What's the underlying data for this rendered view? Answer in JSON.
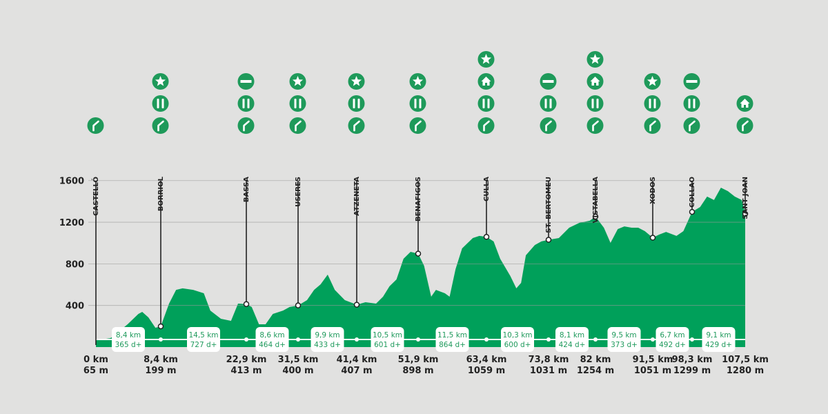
{
  "chart_data": {
    "type": "area",
    "title": "",
    "xlabel": "",
    "ylabel": "",
    "x_unit": "km",
    "y_unit": "m",
    "ylim": [
      0,
      1600
    ],
    "xlim": [
      0,
      107.5
    ],
    "y_ticks": [
      "400",
      "800",
      "1200",
      "1600"
    ],
    "grid": true,
    "colors": {
      "fill": "#00a05a",
      "icon": "#1e9a5a",
      "background": "#e1e1e0",
      "text": "#222222"
    },
    "profile": [
      [
        0,
        65
      ],
      [
        1.9,
        86
      ],
      [
        4.1,
        219
      ],
      [
        5.5,
        318
      ],
      [
        6.0,
        338
      ],
      [
        6.8,
        285
      ],
      [
        7.7,
        186
      ],
      [
        8.4,
        199
      ],
      [
        9.8,
        418
      ],
      [
        11.0,
        550
      ],
      [
        12.1,
        564
      ],
      [
        13.9,
        550
      ],
      [
        15.7,
        517
      ],
      [
        16.8,
        351
      ],
      [
        18.6,
        272
      ],
      [
        20.3,
        252
      ],
      [
        21.5,
        418
      ],
      [
        22.9,
        413
      ],
      [
        23.8,
        385
      ],
      [
        25.0,
        219
      ],
      [
        26.1,
        219
      ],
      [
        27.3,
        318
      ],
      [
        29.0,
        351
      ],
      [
        30.1,
        385
      ],
      [
        31.5,
        400
      ],
      [
        33.0,
        451
      ],
      [
        34.2,
        550
      ],
      [
        35.3,
        603
      ],
      [
        36.5,
        696
      ],
      [
        37.7,
        550
      ],
      [
        39.4,
        451
      ],
      [
        41.4,
        407
      ],
      [
        42.9,
        431
      ],
      [
        44.7,
        418
      ],
      [
        45.9,
        484
      ],
      [
        47.0,
        584
      ],
      [
        48.2,
        650
      ],
      [
        49.4,
        849
      ],
      [
        50.6,
        915
      ],
      [
        51.9,
        898
      ],
      [
        52.9,
        782
      ],
      [
        54.1,
        484
      ],
      [
        54.9,
        550
      ],
      [
        56.4,
        517
      ],
      [
        57.2,
        484
      ],
      [
        58.2,
        749
      ],
      [
        59.3,
        948
      ],
      [
        61.1,
        1048
      ],
      [
        62.2,
        1068
      ],
      [
        63.4,
        1059
      ],
      [
        64.6,
        1015
      ],
      [
        65.7,
        849
      ],
      [
        67.4,
        683
      ],
      [
        68.4,
        564
      ],
      [
        69.2,
        617
      ],
      [
        70.0,
        882
      ],
      [
        71.5,
        981
      ],
      [
        72.6,
        1015
      ],
      [
        73.8,
        1031
      ],
      [
        75.6,
        1048
      ],
      [
        77.4,
        1147
      ],
      [
        79.2,
        1194
      ],
      [
        81.0,
        1214
      ],
      [
        82,
        1254
      ],
      [
        83.4,
        1147
      ],
      [
        84.5,
        1001
      ],
      [
        85.7,
        1134
      ],
      [
        86.8,
        1160
      ],
      [
        88.0,
        1147
      ],
      [
        89.1,
        1147
      ],
      [
        90.2,
        1114
      ],
      [
        91.5,
        1051
      ],
      [
        92.6,
        1081
      ],
      [
        93.8,
        1107
      ],
      [
        95.6,
        1068
      ],
      [
        96.8,
        1114
      ],
      [
        98.3,
        1299
      ],
      [
        99.7,
        1346
      ],
      [
        100.9,
        1446
      ],
      [
        102.1,
        1413
      ],
      [
        103.3,
        1532
      ],
      [
        104.5,
        1499
      ],
      [
        105.7,
        1446
      ],
      [
        106.9,
        1413
      ],
      [
        107.5,
        1280
      ]
    ],
    "stations": [
      {
        "name": "CASTELLÓ",
        "km": 0,
        "km_label": "0 km",
        "elev": 65,
        "elev_label": "65 m",
        "icons": [
          "bike"
        ]
      },
      {
        "name": "BORRIOL",
        "km": 8.4,
        "km_label": "8,4 km",
        "elev": 199,
        "elev_label": "199 m",
        "icons": [
          "star",
          "food",
          "bike"
        ]
      },
      {
        "name": "BASSA",
        "km": 22.9,
        "km_label": "22,9 km",
        "elev": 413,
        "elev_label": "413 m",
        "icons": [
          "no-entry",
          "food",
          "bike"
        ]
      },
      {
        "name": "USERES",
        "km": 31.5,
        "km_label": "31,5 km",
        "elev": 400,
        "elev_label": "400 m",
        "icons": [
          "star",
          "food",
          "bike"
        ]
      },
      {
        "name": "ATZENETA",
        "km": 41.4,
        "km_label": "41,4 km",
        "elev": 407,
        "elev_label": "407 m",
        "icons": [
          "star",
          "food",
          "bike"
        ]
      },
      {
        "name": "BENAFIGOS",
        "km": 51.9,
        "km_label": "51,9 km",
        "elev": 898,
        "elev_label": "898 m",
        "icons": [
          "star",
          "food",
          "bike"
        ]
      },
      {
        "name": "CULLA",
        "km": 63.4,
        "km_label": "63,4 km",
        "elev": 1059,
        "elev_label": "1059 m",
        "icons": [
          "star",
          "house",
          "food",
          "bike"
        ]
      },
      {
        "name": "ST. BERTOMEU",
        "km": 73.8,
        "km_label": "73,8 km",
        "elev": 1031,
        "elev_label": "1031 m",
        "icons": [
          "no-entry",
          "food",
          "bike"
        ]
      },
      {
        "name": "VISTABELLA",
        "km": 82,
        "km_label": "82 km",
        "elev": 1254,
        "elev_label": "1254 m",
        "icons": [
          "star",
          "house",
          "food",
          "bike"
        ]
      },
      {
        "name": "XODOS",
        "km": 91.5,
        "km_label": "91,5 km",
        "elev": 1051,
        "elev_label": "1051 m",
        "icons": [
          "star",
          "food",
          "bike"
        ]
      },
      {
        "name": "COLLAO",
        "km": 98.3,
        "km_label": "98,3 km",
        "elev": 1299,
        "elev_label": "1299 m",
        "icons": [
          "no-entry",
          "food",
          "bike"
        ]
      },
      {
        "name": "SANT JOAN",
        "km": 107.5,
        "km_label": "107,5 km",
        "elev": 1280,
        "elev_label": "1280 m",
        "icons": [
          "house",
          "bike"
        ]
      }
    ],
    "segments": [
      {
        "distance": "8,4 km",
        "climb": "365 d+"
      },
      {
        "distance": "14,5 km",
        "climb": "727 d+"
      },
      {
        "distance": "8,6 km",
        "climb": "464 d+"
      },
      {
        "distance": "9,9 km",
        "climb": "433 d+"
      },
      {
        "distance": "10,5 km",
        "climb": "601 d+"
      },
      {
        "distance": "11,5 km",
        "climb": "864 d+"
      },
      {
        "distance": "10,3 km",
        "climb": "600 d+"
      },
      {
        "distance": "8,1 km",
        "climb": "424 d+"
      },
      {
        "distance": "9,5 km",
        "climb": "373 d+"
      },
      {
        "distance": "6,7 km",
        "climb": "492 d+"
      },
      {
        "distance": "9,1 km",
        "climb": "429 d+"
      }
    ]
  }
}
